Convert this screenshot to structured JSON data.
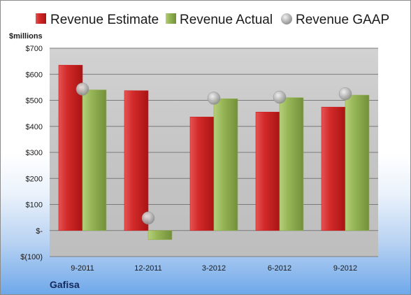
{
  "company": "Gafisa",
  "colors": {
    "estimate": "#cc1f1f",
    "actual": "#8fb04a",
    "gaap": "#b3b3b3"
  },
  "chart_data": {
    "type": "bar",
    "unit_label": "$millions",
    "categories": [
      "9-2011",
      "12-2011",
      "3-2012",
      "6-2012",
      "9-2012"
    ],
    "series": [
      {
        "name": "Revenue Estimate",
        "values": [
          635,
          537,
          436,
          455,
          474
        ]
      },
      {
        "name": "Revenue Actual",
        "values": [
          540,
          -35,
          506,
          510,
          520
        ]
      },
      {
        "name": "Revenue GAAP",
        "values": [
          543,
          48,
          508,
          512,
          525
        ]
      }
    ],
    "ylim": [
      -100,
      700
    ],
    "y_ticks": [
      {
        "value": 700,
        "label": "$700"
      },
      {
        "value": 600,
        "label": "$600"
      },
      {
        "value": 500,
        "label": "$500"
      },
      {
        "value": 400,
        "label": "$400"
      },
      {
        "value": 300,
        "label": "$300"
      },
      {
        "value": 200,
        "label": "$200"
      },
      {
        "value": 100,
        "label": "$100"
      },
      {
        "value": 0,
        "label": "$-"
      },
      {
        "value": -100,
        "label": "$(100)"
      }
    ],
    "grid": true,
    "legend_position": "top"
  }
}
